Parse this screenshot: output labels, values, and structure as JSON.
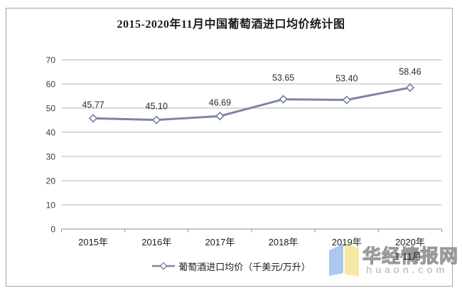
{
  "title": "2015-2020年11月中国葡萄酒进口均价统计图",
  "chart_data": {
    "type": "line",
    "categories": [
      "2015年",
      "2016年",
      "2017年",
      "2018年",
      "2019年",
      "2020年"
    ],
    "last_category_subnote": "1-11月",
    "series": [
      {
        "name": "葡萄酒进口均价（千美元/万升）",
        "values": [
          45.77,
          45.1,
          46.69,
          53.65,
          53.4,
          58.46
        ]
      }
    ],
    "title": "2015-2020年11月中国葡萄酒进口均价统计图",
    "xlabel": "",
    "ylabel": "",
    "ylim": [
      0,
      70
    ],
    "ytick_step": 10,
    "grid": true,
    "legend_position": "bottom",
    "line_color": "#7b85a8",
    "marker": "diamond",
    "data_labels_shown": true
  },
  "legend": {
    "label": "葡萄酒进口均价（千美元/万升）"
  },
  "watermark": {
    "name": "华经情报网",
    "domain": "huaon.com",
    "logo_blue": "#a9c9ef",
    "logo_yellow": "#f6e8a3"
  },
  "colors": {
    "gridline": "#b3b3b3",
    "axis": "#8c8c8c",
    "tick_label": "#3c3c3c",
    "data_label": "#2b2b2b"
  }
}
